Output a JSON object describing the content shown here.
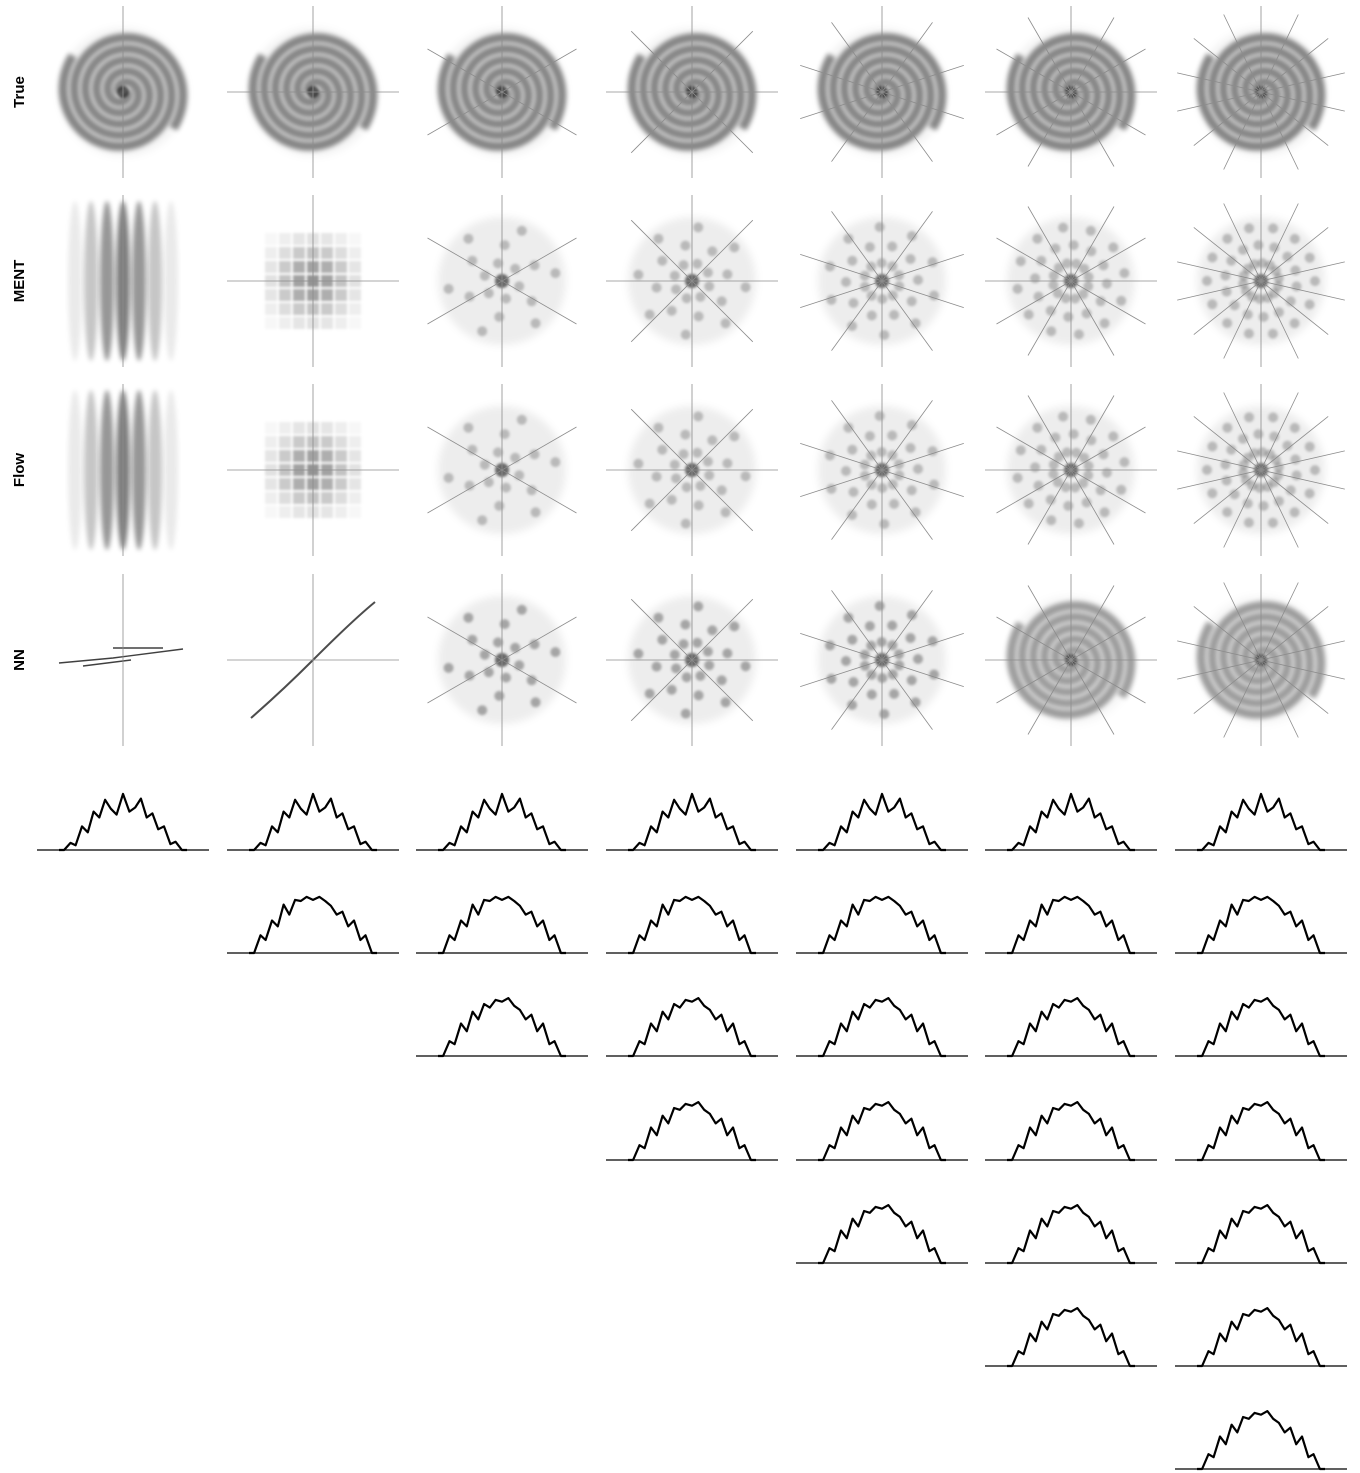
{
  "figure": {
    "row_labels": [
      "True",
      "MENT",
      "Flow",
      "NN"
    ]
  },
  "colors": {
    "projection_line": "#8c8c8c",
    "density": "#000000",
    "profile": "#000000",
    "background": "#ffffff"
  },
  "chart_data": [
    {
      "type": "heatmap",
      "title": "",
      "grid": "density images, 4 rows x 7 columns",
      "rows": [
        "True",
        "MENT",
        "Flow",
        "NN"
      ],
      "columns_projection_count": [
        1,
        2,
        3,
        4,
        5,
        6,
        7
      ],
      "distribution": "two-arm spiral",
      "projection_lines": "one line through the center per projection angle, angles evenly spaced over 180 degrees",
      "axes_visible": false
    },
    {
      "type": "line",
      "title": "",
      "grid": "lower-triangular, 7 rows x 7 columns; row i appears in columns i..7",
      "xlabel": "",
      "ylabel": "",
      "x": [
        -1,
        -0.92,
        -0.82,
        -0.74,
        -0.64,
        -0.55,
        -0.46,
        -0.37,
        -0.28,
        -0.19,
        -0.1,
        0,
        0.1,
        0.19,
        0.28,
        0.37,
        0.46,
        0.55,
        0.64,
        0.74,
        0.82,
        0.92,
        1
      ],
      "series": [
        {
          "values": [
            0,
            0,
            0.12,
            0.08,
            0.4,
            0.3,
            0.65,
            0.55,
            0.85,
            0.7,
            0.6,
            0.95,
            0.65,
            0.72,
            0.87,
            0.55,
            0.62,
            0.35,
            0.4,
            0.1,
            0.14,
            0,
            0
          ]
        },
        {
          "values": [
            0,
            0,
            0.3,
            0.22,
            0.55,
            0.45,
            0.82,
            0.65,
            0.9,
            0.88,
            0.95,
            0.9,
            0.95,
            0.88,
            0.8,
            0.65,
            0.7,
            0.45,
            0.55,
            0.22,
            0.3,
            0,
            0
          ]
        },
        {
          "values": [
            0,
            0,
            0.25,
            0.2,
            0.55,
            0.42,
            0.75,
            0.62,
            0.88,
            0.82,
            0.95,
            0.92,
            0.98,
            0.85,
            0.78,
            0.62,
            0.7,
            0.42,
            0.55,
            0.2,
            0.25,
            0,
            0
          ]
        },
        {
          "values": [
            0,
            0,
            0.25,
            0.2,
            0.55,
            0.42,
            0.75,
            0.62,
            0.88,
            0.85,
            0.95,
            0.92,
            0.98,
            0.85,
            0.78,
            0.62,
            0.7,
            0.42,
            0.55,
            0.2,
            0.25,
            0,
            0
          ]
        },
        {
          "values": [
            0,
            0,
            0.25,
            0.2,
            0.55,
            0.42,
            0.75,
            0.62,
            0.88,
            0.85,
            0.95,
            0.92,
            0.98,
            0.85,
            0.78,
            0.62,
            0.7,
            0.42,
            0.55,
            0.2,
            0.25,
            0,
            0
          ]
        },
        {
          "values": [
            0,
            0,
            0.25,
            0.2,
            0.55,
            0.42,
            0.75,
            0.62,
            0.88,
            0.85,
            0.95,
            0.92,
            0.98,
            0.85,
            0.78,
            0.62,
            0.7,
            0.42,
            0.55,
            0.2,
            0.25,
            0,
            0
          ]
        },
        {
          "values": [
            0,
            0,
            0.25,
            0.2,
            0.55,
            0.42,
            0.75,
            0.62,
            0.88,
            0.85,
            0.95,
            0.92,
            0.98,
            0.85,
            0.78,
            0.62,
            0.7,
            0.42,
            0.55,
            0.2,
            0.25,
            0,
            0
          ]
        }
      ],
      "ylim": [
        0,
        1.05
      ],
      "axes_visible": "baseline only"
    }
  ]
}
